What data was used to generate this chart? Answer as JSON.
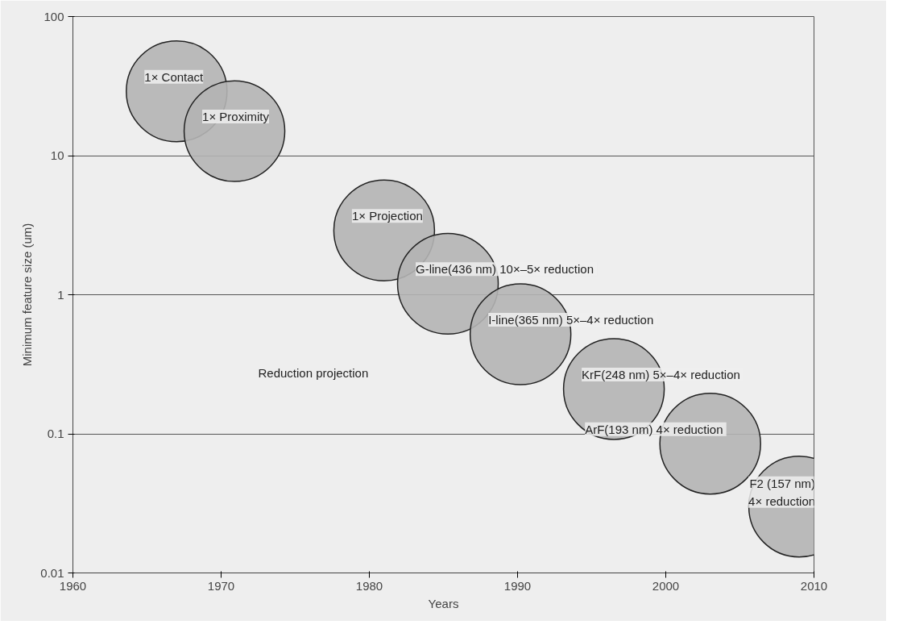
{
  "chart_data": {
    "type": "scatter",
    "xlabel": "Years",
    "ylabel": "Minimum feature size (um)",
    "xlim": [
      1960,
      2010
    ],
    "xticks": [
      1960,
      1970,
      1980,
      1990,
      2000,
      2010
    ],
    "ylim": [
      0.01,
      100
    ],
    "yticks": [
      0.01,
      0.1,
      1,
      10,
      100
    ],
    "log": true,
    "grid": "y",
    "marker": "circle",
    "series": [
      {
        "name": "1× Contact",
        "color": "#b4b4b4",
        "x": [
          1967.0
        ],
        "values": [
          29
        ]
      },
      {
        "name": "1× Proximity",
        "color": "#b4b4b4",
        "x": [
          1970.9
        ],
        "values": [
          15
        ]
      },
      {
        "name": "1× Projection",
        "color": "#b4b4b4",
        "x": [
          1981.0
        ],
        "values": [
          2.9
        ]
      },
      {
        "name": "G-line(436 nm)  10×–5× reduction",
        "color": "#b4b4b4",
        "x": [
          1985.3
        ],
        "values": [
          1.2
        ]
      },
      {
        "name": "I-line(365 nm)  5×–4× reduction",
        "color": "#b4b4b4",
        "x": [
          1990.2
        ],
        "values": [
          0.52
        ]
      },
      {
        "name": "KrF(248 nm)  5×–4× reduction",
        "color": "#b4b4b4",
        "x": [
          1996.5
        ],
        "values": [
          0.21
        ]
      },
      {
        "name": "ArF(193 nm)  4× reduction",
        "color": "#b4b4b4",
        "x": [
          2003.0
        ],
        "values": [
          0.085
        ]
      },
      {
        "name": "F2 (157 nm)\n4× reduction",
        "color": "#b4b4b4",
        "x": [
          2009.0
        ],
        "values": [
          0.03
        ]
      }
    ],
    "annotations": [
      "Reduction projection"
    ]
  }
}
